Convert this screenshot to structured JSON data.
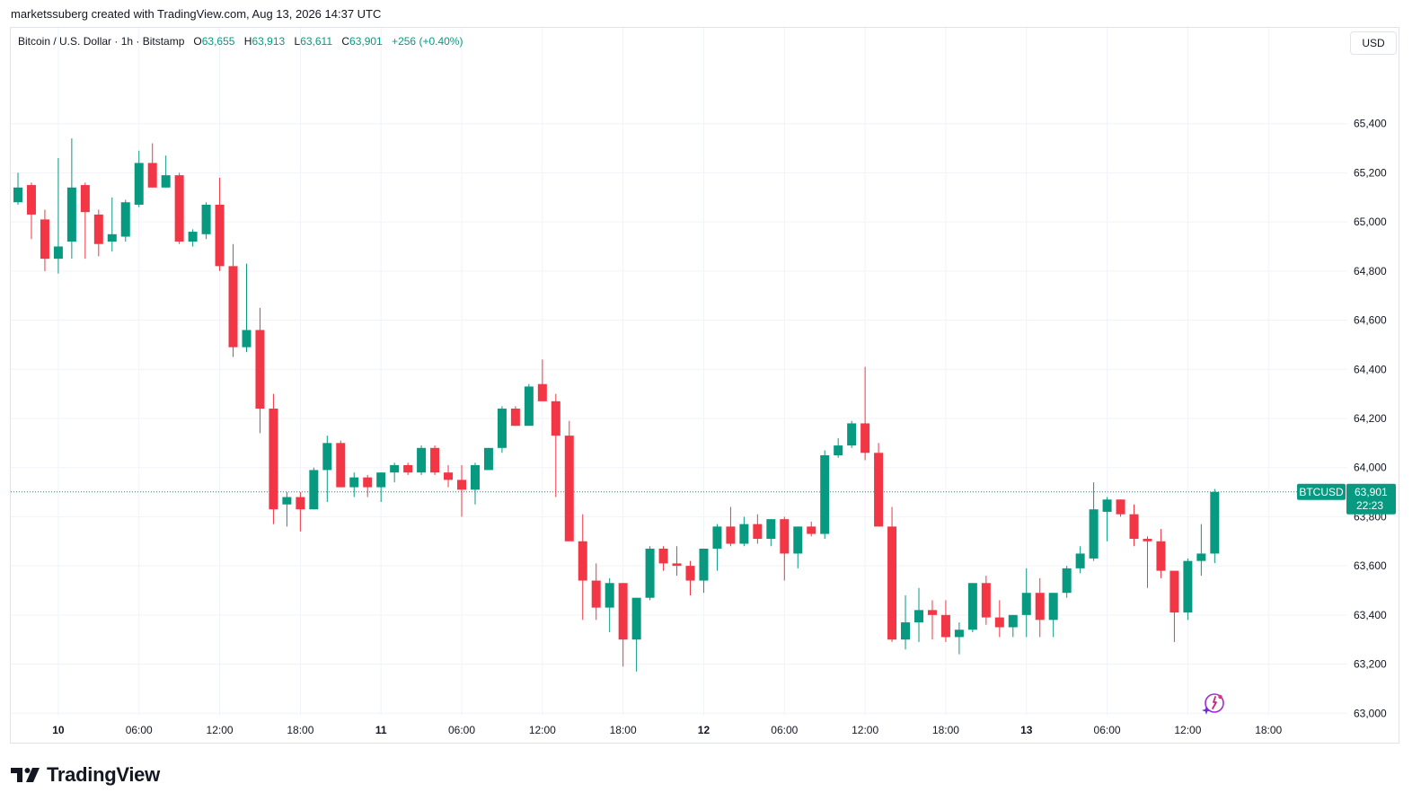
{
  "header": {
    "credit": "marketssuberg created with TradingView.com, Aug 13, 2026 14:37 UTC"
  },
  "legend": {
    "symbol": "Bitcoin / U.S. Dollar · 1h · Bitstamp",
    "open_label": "O",
    "open": "63,655",
    "high_label": "H",
    "high": "63,913",
    "low_label": "L",
    "low": "63,611",
    "close_label": "C",
    "close": "63,901",
    "change": "+256 (+0.40%)"
  },
  "currency": "USD",
  "price_tag": {
    "symbol": "BTCUSD",
    "price": "63,901",
    "countdown": "22:23"
  },
  "brand": "TradingView",
  "colors": {
    "up": "#089981",
    "down": "#f23645",
    "grid": "#f0f3fa",
    "text": "#131722"
  },
  "icons": {
    "logo": "tradingview-logo-icon",
    "assistant": "sparkle-assistant-icon"
  },
  "chart_data": {
    "type": "candlestick",
    "title": "",
    "interval": "1h",
    "ylim": [
      62990,
      65790
    ],
    "y_ticks": [
      "63,000",
      "63,200",
      "63,400",
      "63,600",
      "63,800",
      "64,000",
      "64,200",
      "64,400",
      "64,600",
      "64,800",
      "65,000",
      "65,200",
      "65,400"
    ],
    "y_tick_values": [
      63000,
      63200,
      63400,
      63600,
      63800,
      64000,
      64200,
      64400,
      64600,
      64800,
      65000,
      65200,
      65400
    ],
    "x_ticks": [
      {
        "label": "10",
        "bar": 3,
        "bold": true
      },
      {
        "label": "06:00",
        "bar": 9
      },
      {
        "label": "12:00",
        "bar": 15
      },
      {
        "label": "18:00",
        "bar": 21
      },
      {
        "label": "11",
        "bar": 27,
        "bold": true
      },
      {
        "label": "06:00",
        "bar": 33
      },
      {
        "label": "12:00",
        "bar": 39
      },
      {
        "label": "18:00",
        "bar": 45
      },
      {
        "label": "12",
        "bar": 51,
        "bold": true
      },
      {
        "label": "06:00",
        "bar": 57
      },
      {
        "label": "12:00",
        "bar": 63
      },
      {
        "label": "18:00",
        "bar": 69
      },
      {
        "label": "13",
        "bar": 75,
        "bold": true
      },
      {
        "label": "06:00",
        "bar": 81
      },
      {
        "label": "12:00",
        "bar": 87
      },
      {
        "label": "18:00",
        "bar": 93
      }
    ],
    "last_price": 63901,
    "candles": [
      {
        "o": 65080,
        "h": 65200,
        "l": 65070,
        "c": 65140
      },
      {
        "o": 65150,
        "h": 65160,
        "l": 64930,
        "c": 65030
      },
      {
        "o": 65010,
        "h": 65050,
        "l": 64800,
        "c": 64850
      },
      {
        "o": 64850,
        "h": 65260,
        "l": 64790,
        "c": 64900
      },
      {
        "o": 64920,
        "h": 65340,
        "l": 64850,
        "c": 65140
      },
      {
        "o": 65150,
        "h": 65160,
        "l": 64850,
        "c": 65040
      },
      {
        "o": 65030,
        "h": 65050,
        "l": 64860,
        "c": 64910
      },
      {
        "o": 64920,
        "h": 65100,
        "l": 64880,
        "c": 64950
      },
      {
        "o": 64940,
        "h": 65090,
        "l": 64920,
        "c": 65080
      },
      {
        "o": 65070,
        "h": 65290,
        "l": 65060,
        "c": 65240
      },
      {
        "o": 65240,
        "h": 65320,
        "l": 65140,
        "c": 65140
      },
      {
        "o": 65140,
        "h": 65270,
        "l": 65140,
        "c": 65190
      },
      {
        "o": 65190,
        "h": 65200,
        "l": 64910,
        "c": 64920
      },
      {
        "o": 64920,
        "h": 64970,
        "l": 64900,
        "c": 64960
      },
      {
        "o": 64950,
        "h": 65080,
        "l": 64930,
        "c": 65070
      },
      {
        "o": 65070,
        "h": 65180,
        "l": 64800,
        "c": 64820
      },
      {
        "o": 64820,
        "h": 64910,
        "l": 64450,
        "c": 64490
      },
      {
        "o": 64490,
        "h": 64830,
        "l": 64470,
        "c": 64560
      },
      {
        "o": 64560,
        "h": 64650,
        "l": 64140,
        "c": 64240
      },
      {
        "o": 64240,
        "h": 64300,
        "l": 63770,
        "c": 63830
      },
      {
        "o": 63850,
        "h": 63900,
        "l": 63760,
        "c": 63880
      },
      {
        "o": 63880,
        "h": 63900,
        "l": 63740,
        "c": 63830
      },
      {
        "o": 63830,
        "h": 64000,
        "l": 63830,
        "c": 63990
      },
      {
        "o": 63990,
        "h": 64130,
        "l": 63860,
        "c": 64100
      },
      {
        "o": 64100,
        "h": 64110,
        "l": 63920,
        "c": 63920
      },
      {
        "o": 63920,
        "h": 63980,
        "l": 63880,
        "c": 63960
      },
      {
        "o": 63960,
        "h": 63970,
        "l": 63880,
        "c": 63920
      },
      {
        "o": 63920,
        "h": 63980,
        "l": 63860,
        "c": 63980
      },
      {
        "o": 63980,
        "h": 64020,
        "l": 63940,
        "c": 64010
      },
      {
        "o": 64010,
        "h": 64020,
        "l": 63970,
        "c": 63980
      },
      {
        "o": 63980,
        "h": 64090,
        "l": 63970,
        "c": 64080
      },
      {
        "o": 64080,
        "h": 64090,
        "l": 63970,
        "c": 63980
      },
      {
        "o": 63980,
        "h": 64010,
        "l": 63920,
        "c": 63950
      },
      {
        "o": 63950,
        "h": 64010,
        "l": 63800,
        "c": 63910
      },
      {
        "o": 63910,
        "h": 64020,
        "l": 63850,
        "c": 64010
      },
      {
        "o": 63990,
        "h": 64080,
        "l": 63990,
        "c": 64080
      },
      {
        "o": 64080,
        "h": 64250,
        "l": 64060,
        "c": 64240
      },
      {
        "o": 64240,
        "h": 64250,
        "l": 64170,
        "c": 64170
      },
      {
        "o": 64170,
        "h": 64340,
        "l": 64170,
        "c": 64330
      },
      {
        "o": 64340,
        "h": 64440,
        "l": 64270,
        "c": 64270
      },
      {
        "o": 64270,
        "h": 64300,
        "l": 63880,
        "c": 64130
      },
      {
        "o": 64130,
        "h": 64190,
        "l": 63700,
        "c": 63700
      },
      {
        "o": 63700,
        "h": 63810,
        "l": 63380,
        "c": 63540
      },
      {
        "o": 63540,
        "h": 63610,
        "l": 63380,
        "c": 63430
      },
      {
        "o": 63430,
        "h": 63550,
        "l": 63330,
        "c": 63530
      },
      {
        "o": 63530,
        "h": 63530,
        "l": 63190,
        "c": 63300
      },
      {
        "o": 63300,
        "h": 63470,
        "l": 63170,
        "c": 63470
      },
      {
        "o": 63470,
        "h": 63680,
        "l": 63460,
        "c": 63670
      },
      {
        "o": 63670,
        "h": 63680,
        "l": 63580,
        "c": 63610
      },
      {
        "o": 63610,
        "h": 63680,
        "l": 63560,
        "c": 63600
      },
      {
        "o": 63600,
        "h": 63620,
        "l": 63480,
        "c": 63540
      },
      {
        "o": 63540,
        "h": 63670,
        "l": 63490,
        "c": 63670
      },
      {
        "o": 63670,
        "h": 63770,
        "l": 63580,
        "c": 63760
      },
      {
        "o": 63760,
        "h": 63840,
        "l": 63680,
        "c": 63690
      },
      {
        "o": 63690,
        "h": 63800,
        "l": 63680,
        "c": 63770
      },
      {
        "o": 63770,
        "h": 63810,
        "l": 63690,
        "c": 63710
      },
      {
        "o": 63710,
        "h": 63790,
        "l": 63680,
        "c": 63790
      },
      {
        "o": 63790,
        "h": 63800,
        "l": 63540,
        "c": 63650
      },
      {
        "o": 63650,
        "h": 63760,
        "l": 63590,
        "c": 63760
      },
      {
        "o": 63760,
        "h": 63780,
        "l": 63720,
        "c": 63730
      },
      {
        "o": 63730,
        "h": 64070,
        "l": 63710,
        "c": 64050
      },
      {
        "o": 64050,
        "h": 64120,
        "l": 64040,
        "c": 64090
      },
      {
        "o": 64090,
        "h": 64190,
        "l": 64080,
        "c": 64180
      },
      {
        "o": 64180,
        "h": 64410,
        "l": 64030,
        "c": 64060
      },
      {
        "o": 64060,
        "h": 64100,
        "l": 63760,
        "c": 63760
      },
      {
        "o": 63760,
        "h": 63840,
        "l": 63290,
        "c": 63300
      },
      {
        "o": 63300,
        "h": 63480,
        "l": 63260,
        "c": 63370
      },
      {
        "o": 63370,
        "h": 63510,
        "l": 63290,
        "c": 63420
      },
      {
        "o": 63420,
        "h": 63460,
        "l": 63300,
        "c": 63400
      },
      {
        "o": 63400,
        "h": 63460,
        "l": 63290,
        "c": 63310
      },
      {
        "o": 63310,
        "h": 63370,
        "l": 63240,
        "c": 63340
      },
      {
        "o": 63340,
        "h": 63530,
        "l": 63330,
        "c": 63530
      },
      {
        "o": 63530,
        "h": 63560,
        "l": 63360,
        "c": 63390
      },
      {
        "o": 63390,
        "h": 63460,
        "l": 63310,
        "c": 63350
      },
      {
        "o": 63350,
        "h": 63400,
        "l": 63310,
        "c": 63400
      },
      {
        "o": 63400,
        "h": 63590,
        "l": 63310,
        "c": 63490
      },
      {
        "o": 63490,
        "h": 63550,
        "l": 63310,
        "c": 63380
      },
      {
        "o": 63380,
        "h": 63490,
        "l": 63310,
        "c": 63490
      },
      {
        "o": 63490,
        "h": 63600,
        "l": 63470,
        "c": 63590
      },
      {
        "o": 63590,
        "h": 63680,
        "l": 63570,
        "c": 63650
      },
      {
        "o": 63630,
        "h": 63940,
        "l": 63620,
        "c": 63830
      },
      {
        "o": 63820,
        "h": 63880,
        "l": 63700,
        "c": 63870
      },
      {
        "o": 63870,
        "h": 63870,
        "l": 63800,
        "c": 63810
      },
      {
        "o": 63810,
        "h": 63850,
        "l": 63680,
        "c": 63710
      },
      {
        "o": 63710,
        "h": 63720,
        "l": 63510,
        "c": 63700
      },
      {
        "o": 63700,
        "h": 63750,
        "l": 63550,
        "c": 63580
      },
      {
        "o": 63580,
        "h": 63580,
        "l": 63290,
        "c": 63410
      },
      {
        "o": 63410,
        "h": 63630,
        "l": 63380,
        "c": 63620
      },
      {
        "o": 63620,
        "h": 63770,
        "l": 63560,
        "c": 63650
      },
      {
        "o": 63650,
        "h": 63913,
        "l": 63611,
        "c": 63901
      }
    ]
  }
}
